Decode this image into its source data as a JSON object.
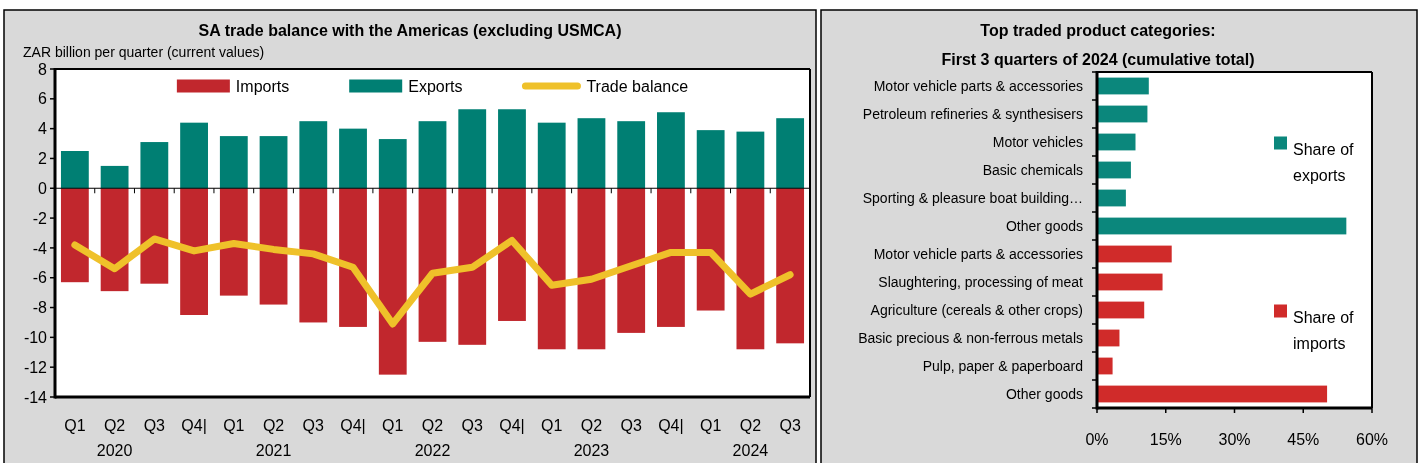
{
  "chart_data": [
    {
      "type": "bar",
      "title": "SA trade balance with the Americas (excluding USMCA)",
      "ylabel": "ZAR billion per quarter (current values)",
      "categories": [
        "Q1",
        "Q2",
        "Q3",
        "Q4|",
        "Q1",
        "Q2",
        "Q3",
        "Q4|",
        "Q1",
        "Q2",
        "Q3",
        "Q4|",
        "Q1",
        "Q2",
        "Q3",
        "Q4|",
        "Q1",
        "Q2",
        "Q3"
      ],
      "annotations": [
        "2020",
        "2021",
        "2022",
        "2023",
        "2024"
      ],
      "series": [
        {
          "name": "Imports",
          "type": "bar",
          "color": "#c1272d",
          "values": [
            -6.3,
            -6.9,
            -6.4,
            -8.5,
            -7.2,
            -7.8,
            -9.0,
            -9.3,
            -12.5,
            -10.3,
            -10.5,
            -8.9,
            -10.8,
            -10.8,
            -9.7,
            -9.3,
            -8.2,
            -10.8,
            -10.4
          ]
        },
        {
          "name": "Exports",
          "type": "bar",
          "color": "#007f73",
          "values": [
            2.5,
            1.5,
            3.1,
            4.4,
            3.5,
            3.5,
            4.5,
            4.0,
            3.3,
            4.5,
            5.3,
            5.3,
            4.4,
            4.7,
            4.5,
            5.1,
            3.9,
            3.8,
            4.7
          ]
        },
        {
          "name": "Trade balance",
          "type": "line",
          "color": "#efc12a",
          "values": [
            -3.8,
            -5.4,
            -3.4,
            -4.2,
            -3.7,
            -4.1,
            -4.4,
            -5.3,
            -9.1,
            -5.7,
            -5.3,
            -3.5,
            -6.5,
            -6.1,
            -5.2,
            -4.3,
            -4.3,
            -7.1,
            -5.8
          ]
        }
      ],
      "stacked": true,
      "ylim": [
        -14,
        8
      ],
      "yticks": [
        8,
        6,
        4,
        2,
        0,
        -2,
        -4,
        -6,
        -8,
        -10,
        -12,
        -14
      ],
      "legend": "top"
    },
    {
      "type": "bar",
      "orientation": "horizontal",
      "title": "Top traded product categories:",
      "subtitle": "First 3 quarters of 2024 (cumulative total)",
      "categories": [
        "Motor vehicle parts & accessories",
        "Petroleum refineries & synthesisers",
        "Motor vehicles",
        "Basic chemicals",
        "Sporting & pleasure boat building…",
        "Other goods",
        "Motor vehicle parts & accessories",
        "Slaughtering, processing of meat",
        "Agriculture (cereals & other crops)",
        "Basic precious & non-ferrous metals",
        "Pulp, paper & paperboard",
        "Other goods"
      ],
      "series": [
        {
          "name": "Share of exports",
          "color": "#0b877c",
          "values": [
            11.3,
            11.0,
            8.4,
            7.4,
            6.3,
            54.4,
            null,
            null,
            null,
            null,
            null,
            null
          ]
        },
        {
          "name": "Share of imports",
          "color": "#d02b2a",
          "values": [
            null,
            null,
            null,
            null,
            null,
            null,
            16.3,
            14.3,
            10.3,
            4.9,
            3.4,
            50.2
          ]
        }
      ],
      "stacked": true,
      "xlim": [
        0,
        60
      ],
      "xticks": [
        {
          "value": 0,
          "label": "0%"
        },
        {
          "value": 15,
          "label": "15%"
        },
        {
          "value": 30,
          "label": "30%"
        },
        {
          "value": 45,
          "label": "45%"
        },
        {
          "value": 60,
          "label": "60%"
        }
      ],
      "legend": "right"
    }
  ]
}
